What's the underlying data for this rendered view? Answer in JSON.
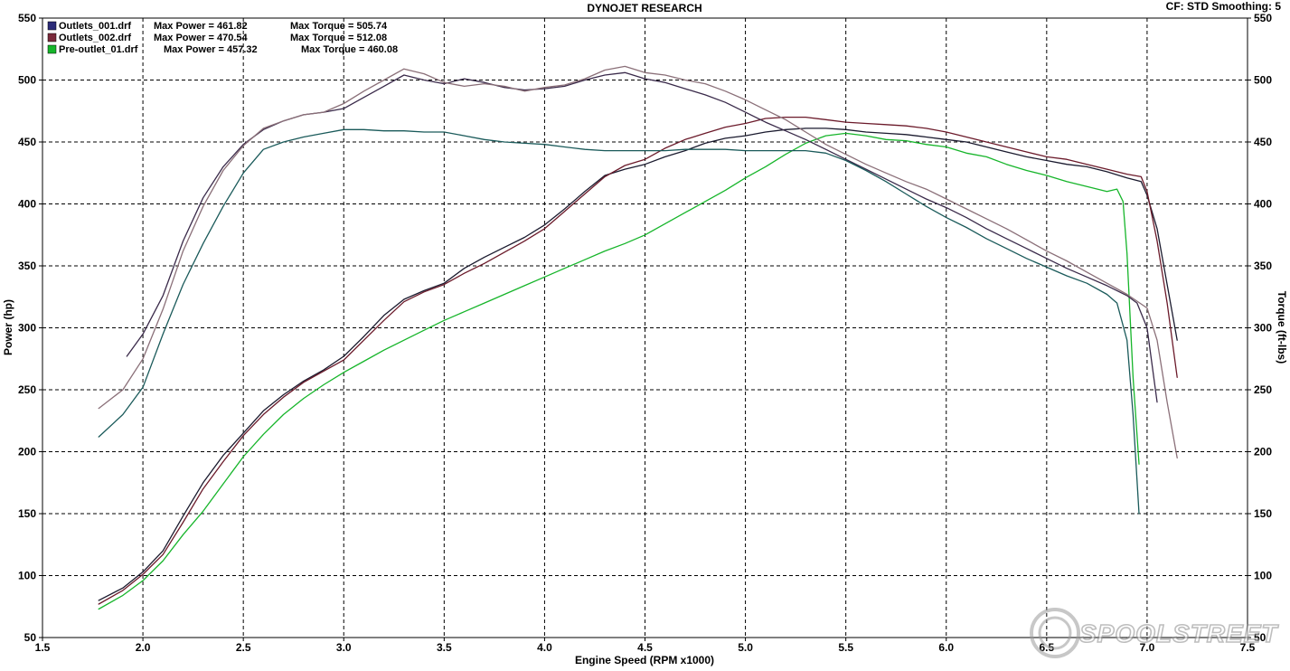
{
  "header": {
    "title": "DYNOJET RESEARCH",
    "settings": "CF: STD  Smoothing: 5"
  },
  "watermark": "SPOOLSTREET",
  "colors": {
    "outlets_001": "#1a1a2e",
    "outlets_002": "#6b1a2a",
    "pre_outlet_01": "#16b52a",
    "grid": "#000000",
    "background": "#ffffff"
  },
  "legend": [
    {
      "file": "Outlets_001.drf",
      "power_label": "Max Power = 461.82",
      "torque_label": "Max Torque = 505.74",
      "color": "#2b2b78"
    },
    {
      "file": "Outlets_002.drf",
      "power_label": "Max Power = 470.54",
      "torque_label": "Max Torque = 512.08",
      "color": "#7a2a3a"
    },
    {
      "file": "Pre-outlet_01.drf",
      "power_label": "Max Power = 457.32",
      "torque_label": "Max Torque = 460.08",
      "color": "#16b52a"
    }
  ],
  "chart_data": {
    "type": "line",
    "title": "DYNOJET RESEARCH",
    "xlabel": "Engine Speed (RPM x1000)",
    "ylabel": "Power (hp)",
    "y2label": "Torque (ft-lbs)",
    "xlim": [
      1.5,
      7.5
    ],
    "ylim": [
      50,
      550
    ],
    "y2lim": [
      50,
      550
    ],
    "x_ticks": [
      "1.5",
      "2.0",
      "2.5",
      "3.0",
      "3.5",
      "4.0",
      "4.5",
      "5.0",
      "5.5",
      "6.0",
      "6.5",
      "7.0",
      "7.5"
    ],
    "y_ticks": [
      "50",
      "100",
      "150",
      "200",
      "250",
      "300",
      "350",
      "400",
      "450",
      "500",
      "550"
    ],
    "grid": true,
    "legend_position": "top-left",
    "series": [
      {
        "name": "Outlets_001.drf",
        "measure": "power",
        "color": "#1a1a2e",
        "x": [
          1.78,
          1.9,
          2.0,
          2.1,
          2.2,
          2.3,
          2.4,
          2.5,
          2.6,
          2.7,
          2.8,
          2.9,
          3.0,
          3.1,
          3.2,
          3.3,
          3.4,
          3.5,
          3.6,
          3.7,
          3.8,
          3.9,
          4.0,
          4.1,
          4.2,
          4.3,
          4.4,
          4.5,
          4.6,
          4.7,
          4.8,
          4.9,
          5.0,
          5.1,
          5.2,
          5.3,
          5.4,
          5.5,
          5.6,
          5.7,
          5.8,
          5.9,
          6.0,
          6.1,
          6.2,
          6.3,
          6.4,
          6.5,
          6.6,
          6.7,
          6.8,
          6.9,
          6.97,
          7.0,
          7.05,
          7.1,
          7.15
        ],
        "y": [
          80,
          90,
          103,
          120,
          148,
          175,
          197,
          215,
          233,
          246,
          257,
          266,
          277,
          293,
          310,
          323,
          330,
          336,
          348,
          357,
          365,
          373,
          383,
          396,
          410,
          423,
          428,
          432,
          438,
          443,
          449,
          453,
          455,
          458,
          460,
          461,
          461,
          460,
          458,
          457,
          456,
          454,
          452,
          450,
          446,
          442,
          438,
          435,
          432,
          430,
          426,
          421,
          418,
          407,
          380,
          335,
          290
        ]
      },
      {
        "name": "Outlets_002.drf",
        "measure": "power",
        "color": "#6b1a2a",
        "x": [
          1.78,
          1.9,
          2.0,
          2.1,
          2.2,
          2.3,
          2.4,
          2.5,
          2.6,
          2.7,
          2.8,
          2.9,
          3.0,
          3.1,
          3.2,
          3.3,
          3.4,
          3.5,
          3.6,
          3.7,
          3.8,
          3.9,
          4.0,
          4.1,
          4.2,
          4.3,
          4.4,
          4.5,
          4.6,
          4.7,
          4.8,
          4.9,
          5.0,
          5.1,
          5.2,
          5.3,
          5.4,
          5.5,
          5.6,
          5.7,
          5.8,
          5.9,
          6.0,
          6.1,
          6.2,
          6.3,
          6.4,
          6.5,
          6.6,
          6.7,
          6.8,
          6.9,
          6.97,
          7.0,
          7.05,
          7.1,
          7.15
        ],
        "y": [
          77,
          88,
          101,
          117,
          143,
          170,
          192,
          213,
          230,
          244,
          256,
          265,
          274,
          290,
          306,
          321,
          329,
          335,
          344,
          352,
          361,
          370,
          380,
          394,
          408,
          422,
          431,
          436,
          445,
          452,
          457,
          462,
          465,
          469,
          470,
          470,
          468,
          466,
          465,
          464,
          463,
          461,
          458,
          454,
          450,
          446,
          442,
          438,
          436,
          432,
          428,
          424,
          422,
          410,
          370,
          320,
          260
        ]
      },
      {
        "name": "Pre-outlet_01.drf",
        "measure": "power",
        "color": "#16b52a",
        "x": [
          1.78,
          1.9,
          2.0,
          2.1,
          2.2,
          2.3,
          2.4,
          2.5,
          2.6,
          2.7,
          2.8,
          2.9,
          3.0,
          3.1,
          3.2,
          3.3,
          3.4,
          3.5,
          3.6,
          3.7,
          3.8,
          3.9,
          4.0,
          4.1,
          4.2,
          4.3,
          4.4,
          4.5,
          4.6,
          4.7,
          4.8,
          4.9,
          5.0,
          5.1,
          5.2,
          5.3,
          5.4,
          5.5,
          5.6,
          5.7,
          5.8,
          5.9,
          6.0,
          6.1,
          6.2,
          6.3,
          6.4,
          6.5,
          6.6,
          6.7,
          6.8,
          6.85,
          6.88,
          6.9,
          6.93,
          6.96
        ],
        "y": [
          73,
          84,
          96,
          112,
          133,
          152,
          174,
          196,
          214,
          230,
          243,
          254,
          264,
          273,
          282,
          290,
          298,
          306,
          313,
          320,
          327,
          334,
          341,
          348,
          355,
          362,
          368,
          375,
          384,
          393,
          402,
          411,
          421,
          430,
          440,
          449,
          455,
          457,
          455,
          452,
          451,
          448,
          446,
          441,
          438,
          432,
          427,
          423,
          418,
          414,
          410,
          412,
          402,
          360,
          260,
          190
        ]
      },
      {
        "name": "Outlets_001.drf",
        "measure": "torque",
        "color": "#3a2a4a",
        "x": [
          1.92,
          2.0,
          2.1,
          2.2,
          2.3,
          2.4,
          2.5,
          2.6,
          2.7,
          2.8,
          2.9,
          3.0,
          3.1,
          3.2,
          3.3,
          3.4,
          3.5,
          3.6,
          3.7,
          3.8,
          3.9,
          4.0,
          4.1,
          4.2,
          4.3,
          4.4,
          4.5,
          4.6,
          4.7,
          4.8,
          4.9,
          5.0,
          5.1,
          5.2,
          5.3,
          5.4,
          5.5,
          5.6,
          5.7,
          5.8,
          5.9,
          6.0,
          6.1,
          6.2,
          6.3,
          6.4,
          6.5,
          6.6,
          6.7,
          6.8,
          6.9,
          6.95,
          7.0,
          7.05
        ],
        "y": [
          277,
          295,
          326,
          370,
          405,
          430,
          448,
          460,
          467,
          472,
          474,
          477,
          486,
          495,
          504,
          500,
          497,
          501,
          498,
          494,
          492,
          493,
          495,
          500,
          504,
          506,
          501,
          498,
          493,
          488,
          482,
          474,
          466,
          459,
          452,
          444,
          436,
          428,
          420,
          412,
          404,
          397,
          389,
          380,
          372,
          364,
          356,
          348,
          341,
          334,
          326,
          320,
          300,
          240
        ]
      },
      {
        "name": "Outlets_002.drf",
        "measure": "torque",
        "color": "#8a6f78",
        "x": [
          1.78,
          1.9,
          2.0,
          2.1,
          2.2,
          2.3,
          2.4,
          2.5,
          2.6,
          2.7,
          2.8,
          2.9,
          3.0,
          3.1,
          3.2,
          3.3,
          3.4,
          3.5,
          3.6,
          3.7,
          3.8,
          3.9,
          4.0,
          4.1,
          4.2,
          4.3,
          4.4,
          4.5,
          4.6,
          4.7,
          4.8,
          4.9,
          5.0,
          5.1,
          5.2,
          5.3,
          5.4,
          5.5,
          5.6,
          5.7,
          5.8,
          5.9,
          6.0,
          6.1,
          6.2,
          6.3,
          6.4,
          6.5,
          6.6,
          6.7,
          6.8,
          6.9,
          7.0,
          7.05,
          7.1,
          7.15
        ],
        "y": [
          235,
          250,
          275,
          315,
          362,
          398,
          427,
          447,
          461,
          467,
          472,
          474,
          481,
          491,
          500,
          509,
          505,
          498,
          495,
          497,
          495,
          491,
          494,
          496,
          501,
          508,
          511,
          506,
          504,
          500,
          497,
          491,
          484,
          476,
          468,
          458,
          448,
          440,
          432,
          425,
          418,
          412,
          404,
          396,
          388,
          380,
          371,
          362,
          354,
          345,
          336,
          327,
          316,
          290,
          240,
          195
        ]
      },
      {
        "name": "Pre-outlet_01.drf",
        "measure": "torque",
        "color": "#1a5a5a",
        "x": [
          1.78,
          1.9,
          2.0,
          2.1,
          2.2,
          2.3,
          2.4,
          2.5,
          2.6,
          2.7,
          2.8,
          2.9,
          3.0,
          3.1,
          3.2,
          3.3,
          3.4,
          3.5,
          3.6,
          3.7,
          3.8,
          3.9,
          4.0,
          4.1,
          4.2,
          4.3,
          4.4,
          4.5,
          4.6,
          4.7,
          4.8,
          4.9,
          5.0,
          5.1,
          5.2,
          5.3,
          5.4,
          5.5,
          5.6,
          5.7,
          5.8,
          5.9,
          6.0,
          6.1,
          6.2,
          6.3,
          6.4,
          6.5,
          6.6,
          6.7,
          6.8,
          6.85,
          6.9,
          6.93,
          6.96
        ],
        "y": [
          212,
          230,
          252,
          295,
          335,
          368,
          398,
          425,
          444,
          450,
          454,
          457,
          460,
          460,
          459,
          459,
          458,
          458,
          455,
          452,
          450,
          449,
          448,
          446,
          444,
          443,
          443,
          443,
          443,
          444,
          444,
          444,
          443,
          443,
          443,
          443,
          441,
          435,
          427,
          418,
          408,
          398,
          389,
          381,
          372,
          364,
          356,
          349,
          342,
          336,
          327,
          320,
          290,
          230,
          150
        ]
      }
    ]
  }
}
